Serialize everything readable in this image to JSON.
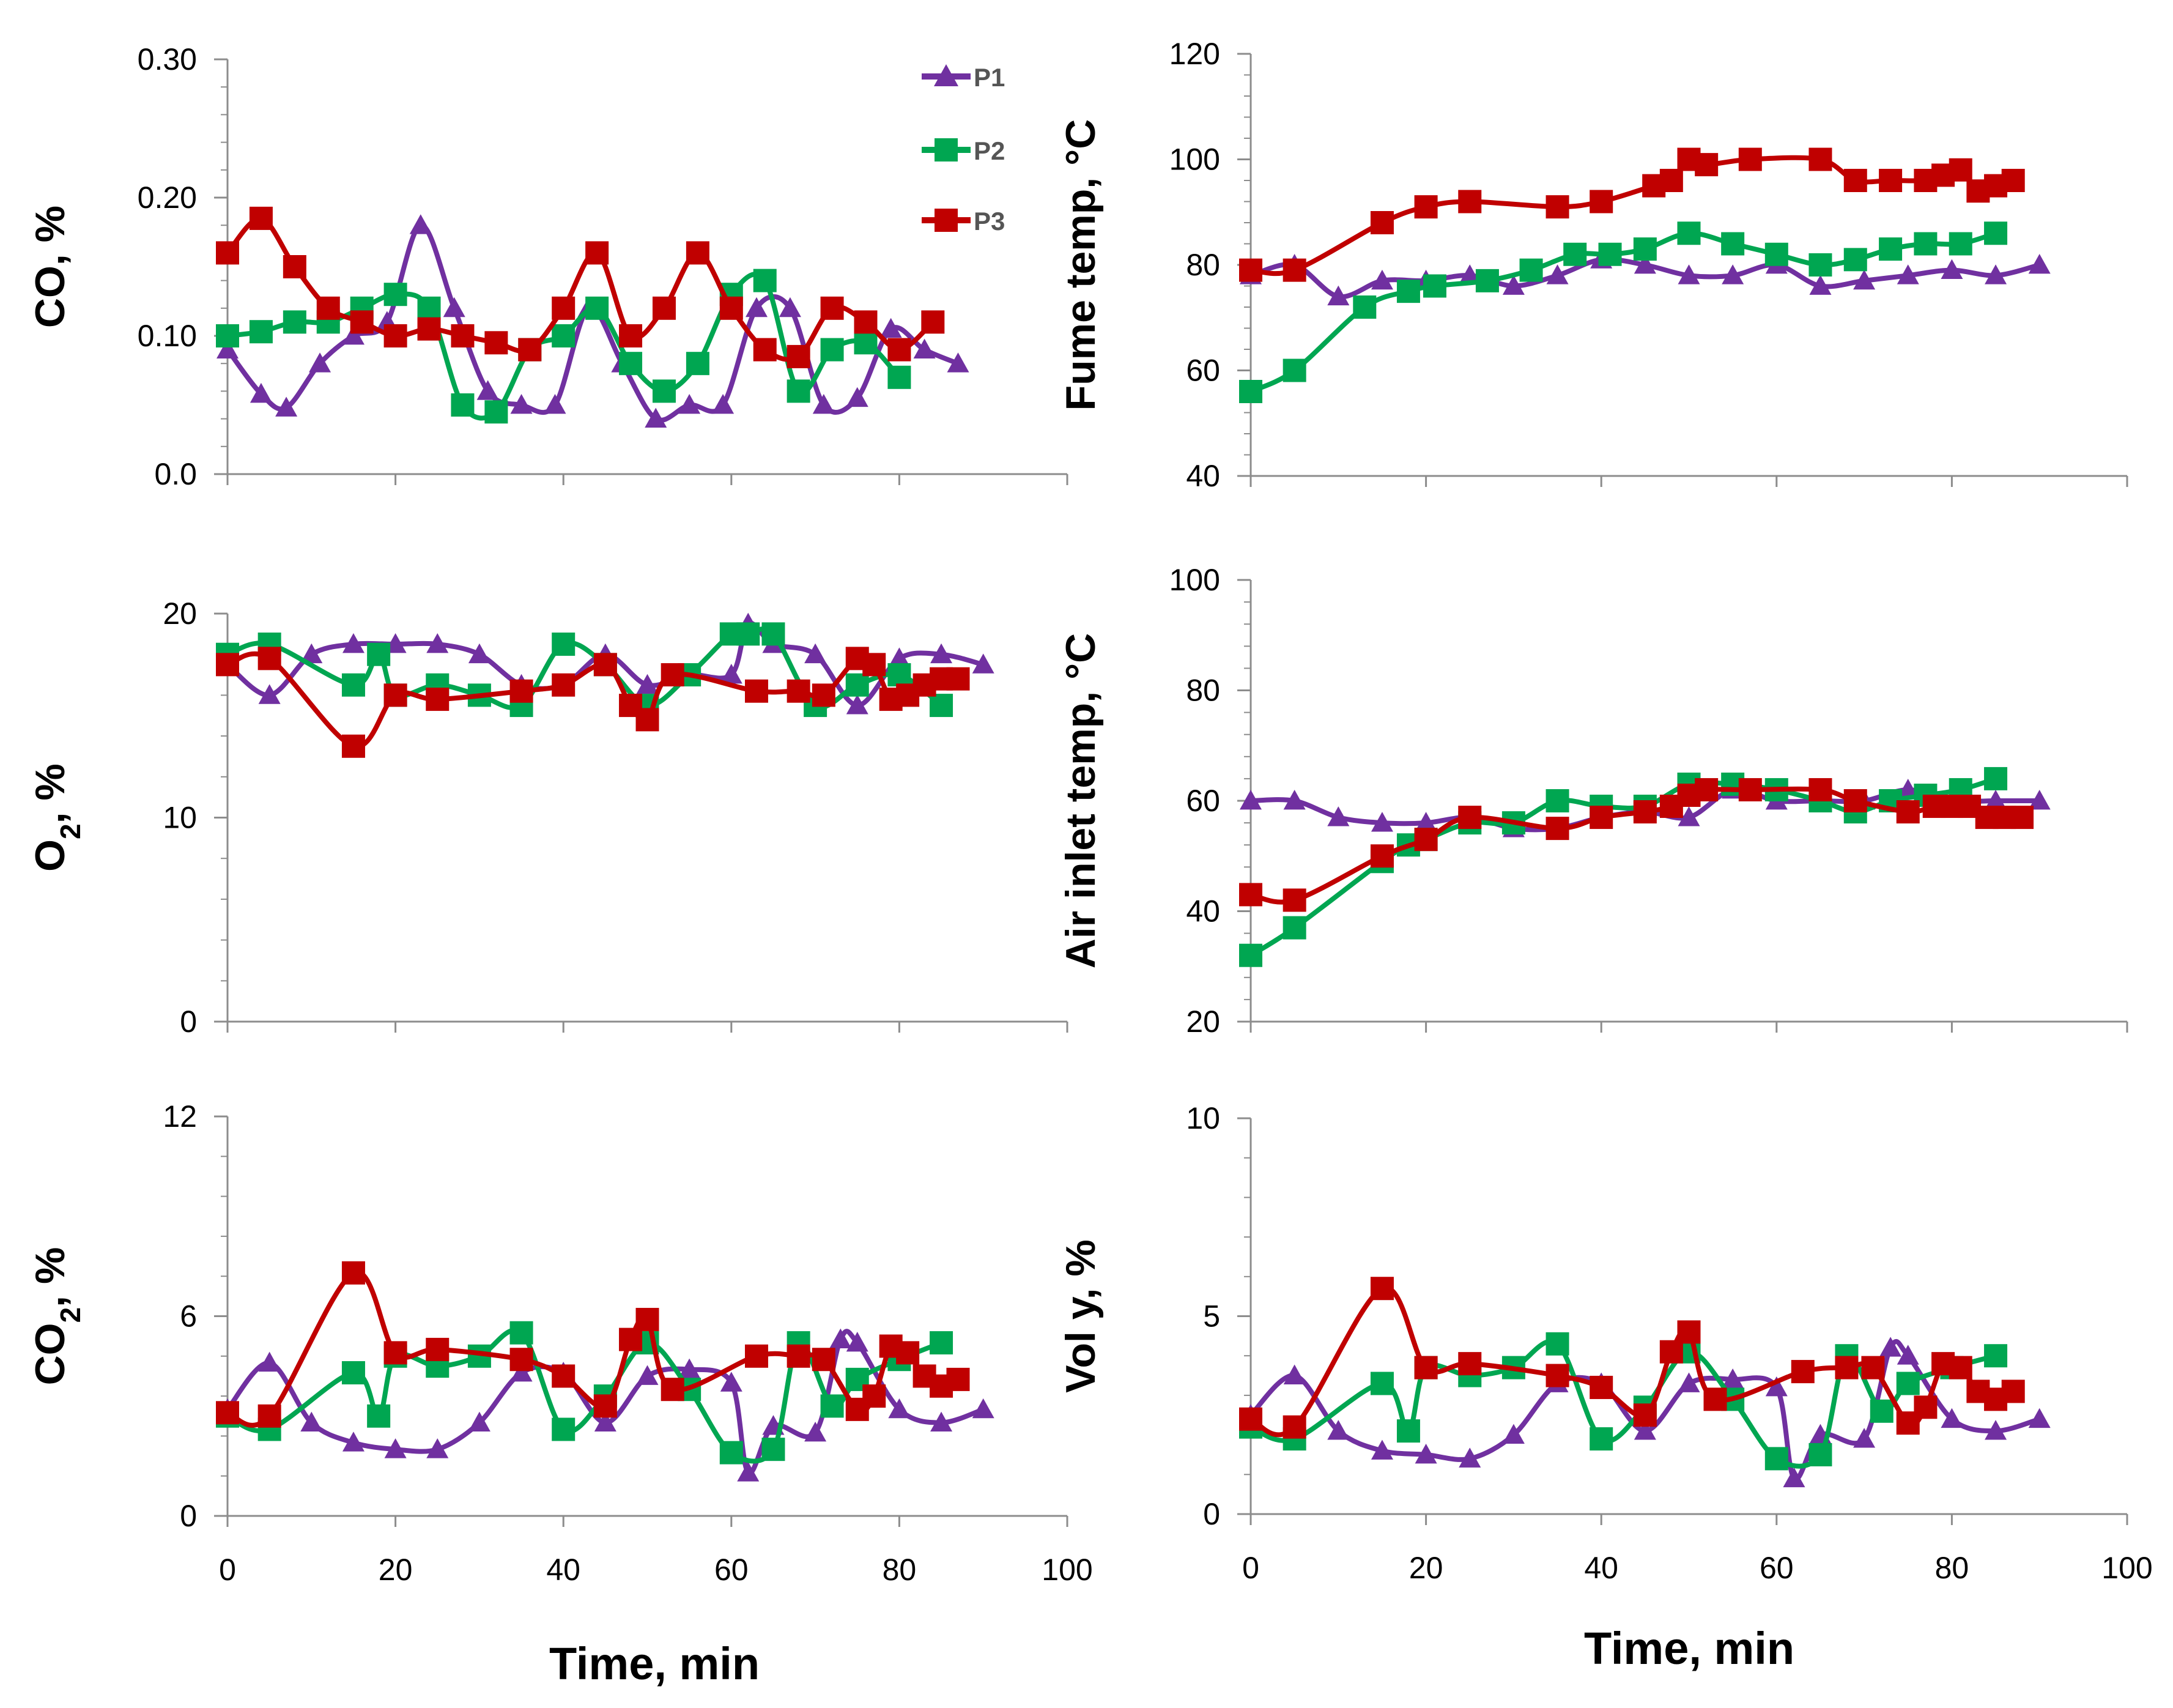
{
  "figure": {
    "xlabel": "Time, min"
  },
  "legend": [
    {
      "name": "P1",
      "color": "#7030a0",
      "marker": "triangle"
    },
    {
      "name": "P2",
      "color": "#00a651",
      "marker": "square"
    },
    {
      "name": "P3",
      "color": "#c00000",
      "marker": "square"
    }
  ],
  "chart_data": [
    {
      "id": "co",
      "type": "line",
      "title": "",
      "ylabel": "CO, %",
      "xlabel": "",
      "xlim": [
        0,
        100
      ],
      "ylim": [
        0,
        0.3
      ],
      "xticks": [
        0,
        20,
        40,
        60,
        80,
        100
      ],
      "xtick_labels": [],
      "yticks": [
        0,
        0.1,
        0.2,
        0.3
      ],
      "ytick_labels": [
        "0.0",
        "0.10",
        "0.20",
        "0.30"
      ],
      "series": [
        {
          "name": "P1",
          "x": [
            0,
            4,
            7,
            11,
            15,
            19,
            23,
            27,
            31,
            35,
            39,
            43,
            47,
            51,
            55,
            59,
            63,
            67,
            71,
            75,
            79,
            83,
            87
          ],
          "y": [
            0.09,
            0.058,
            0.048,
            0.08,
            0.1,
            0.11,
            0.18,
            0.12,
            0.06,
            0.05,
            0.05,
            0.12,
            0.08,
            0.04,
            0.05,
            0.05,
            0.12,
            0.12,
            0.05,
            0.055,
            0.105,
            0.09,
            0.08
          ]
        },
        {
          "name": "P2",
          "x": [
            0,
            4,
            8,
            12,
            16,
            20,
            24,
            28,
            32,
            36,
            40,
            44,
            48,
            52,
            56,
            60,
            64,
            68,
            72,
            76,
            80
          ],
          "y": [
            0.1,
            0.103,
            0.11,
            0.11,
            0.12,
            0.13,
            0.12,
            0.05,
            0.045,
            0.09,
            0.1,
            0.12,
            0.08,
            0.06,
            0.08,
            0.13,
            0.14,
            0.06,
            0.09,
            0.095,
            0.07
          ]
        },
        {
          "name": "P3",
          "x": [
            0,
            4,
            8,
            12,
            16,
            20,
            24,
            28,
            32,
            36,
            40,
            44,
            48,
            52,
            56,
            60,
            64,
            68,
            72,
            76,
            80,
            84
          ],
          "y": [
            0.16,
            0.185,
            0.15,
            0.12,
            0.11,
            0.1,
            0.105,
            0.1,
            0.095,
            0.09,
            0.12,
            0.16,
            0.1,
            0.12,
            0.16,
            0.12,
            0.09,
            0.085,
            0.12,
            0.11,
            0.09,
            0.11
          ]
        }
      ]
    },
    {
      "id": "fume",
      "type": "line",
      "title": "",
      "ylabel": "Fume temp, °C",
      "xlabel": "",
      "xlim": [
        0,
        100
      ],
      "ylim": [
        40,
        120
      ],
      "xticks": [
        0,
        20,
        40,
        60,
        80,
        100
      ],
      "xtick_labels": [],
      "yticks": [
        40,
        60,
        80,
        100,
        120
      ],
      "ytick_labels": [
        "40",
        "60",
        "80",
        "100",
        "120"
      ],
      "series": [
        {
          "name": "P1",
          "x": [
            0,
            5,
            10,
            15,
            20,
            25,
            30,
            35,
            40,
            45,
            50,
            55,
            60,
            65,
            70,
            75,
            80,
            85,
            90
          ],
          "y": [
            78,
            80,
            74,
            77,
            77,
            78,
            76,
            78,
            81,
            80,
            78,
            78,
            80,
            76,
            77,
            78,
            79,
            78,
            80
          ]
        },
        {
          "name": "P2",
          "x": [
            0,
            5,
            13,
            18,
            21,
            27,
            32,
            37,
            41,
            45,
            50,
            55,
            60,
            65,
            69,
            73,
            77,
            81,
            85
          ],
          "y": [
            56,
            60,
            72,
            75,
            76,
            77,
            79,
            82,
            82,
            83,
            86,
            84,
            82,
            80,
            81,
            83,
            84,
            84,
            86
          ]
        },
        {
          "name": "P3",
          "x": [
            0,
            5,
            15,
            20,
            25,
            35,
            40,
            46,
            48,
            50,
            52,
            57,
            65,
            69,
            73,
            77,
            79,
            81,
            83,
            85,
            87
          ],
          "y": [
            79,
            79,
            88,
            91,
            92,
            91,
            92,
            95,
            96,
            100,
            99,
            100,
            100,
            96,
            96,
            96,
            97,
            98,
            94,
            95,
            96
          ]
        }
      ]
    },
    {
      "id": "o2",
      "type": "line",
      "title": "",
      "ylabel": "O2, %",
      "xlabel": "",
      "xlim": [
        0,
        100
      ],
      "ylim": [
        0,
        20
      ],
      "xticks": [
        0,
        20,
        40,
        60,
        80,
        100
      ],
      "xtick_labels": [],
      "yticks": [
        0,
        10,
        20
      ],
      "ytick_labels": [
        "0",
        "10",
        "20"
      ],
      "series": [
        {
          "name": "P1",
          "x": [
            0,
            5,
            10,
            15,
            20,
            25,
            30,
            35,
            40,
            45,
            50,
            55,
            60,
            62,
            65,
            70,
            75,
            80,
            85,
            90
          ],
          "y": [
            17.5,
            16,
            18,
            18.5,
            18.5,
            18.5,
            18,
            16.5,
            16.5,
            18,
            16.5,
            17,
            17,
            19.5,
            18.5,
            18,
            15.5,
            17.8,
            18,
            17.5
          ]
        },
        {
          "name": "P2",
          "x": [
            0,
            5,
            15,
            18,
            20,
            25,
            30,
            35,
            40,
            45,
            50,
            55,
            60,
            62,
            65,
            70,
            75,
            80,
            85
          ],
          "y": [
            18,
            18.5,
            16.5,
            18,
            16,
            16.5,
            16,
            15.5,
            18.5,
            17.5,
            15.5,
            17,
            19,
            19,
            19,
            15.5,
            16.5,
            17,
            15.5
          ]
        },
        {
          "name": "P3",
          "x": [
            0,
            5,
            15,
            20,
            25,
            35,
            40,
            45,
            48,
            50,
            53,
            63,
            68,
            71,
            75,
            77,
            79,
            81,
            83,
            85,
            87
          ],
          "y": [
            17.5,
            17.8,
            13.5,
            16,
            15.8,
            16.2,
            16.5,
            17.5,
            15.5,
            14.8,
            17,
            16.2,
            16.2,
            16,
            17.8,
            17.5,
            15.8,
            16,
            16.5,
            16.8,
            16.8
          ]
        }
      ]
    },
    {
      "id": "air",
      "type": "line",
      "title": "",
      "ylabel": "Air inlet temp, °C",
      "xlabel": "",
      "xlim": [
        0,
        100
      ],
      "ylim": [
        20,
        100
      ],
      "xticks": [
        0,
        20,
        40,
        60,
        80,
        100
      ],
      "xtick_labels": [],
      "yticks": [
        20,
        40,
        60,
        80,
        100
      ],
      "ytick_labels": [
        "20",
        "40",
        "60",
        "80",
        "100"
      ],
      "series": [
        {
          "name": "P1",
          "x": [
            0,
            5,
            10,
            15,
            20,
            25,
            30,
            35,
            40,
            45,
            50,
            55,
            60,
            65,
            70,
            75,
            80,
            85,
            90
          ],
          "y": [
            60,
            60,
            57,
            56,
            56,
            57,
            55,
            55,
            57,
            58,
            57,
            62,
            60,
            60,
            60,
            62,
            60,
            60,
            60
          ]
        },
        {
          "name": "P2",
          "x": [
            0,
            5,
            15,
            18,
            20,
            25,
            30,
            35,
            40,
            45,
            50,
            55,
            60,
            65,
            69,
            73,
            77,
            81,
            85
          ],
          "y": [
            32,
            37,
            49,
            52,
            53,
            56,
            56,
            60,
            59,
            59,
            63,
            63,
            62,
            60,
            58,
            60,
            61,
            62,
            64
          ]
        },
        {
          "name": "P3",
          "x": [
            0,
            5,
            15,
            20,
            25,
            35,
            40,
            45,
            48,
            50,
            52,
            57,
            65,
            69,
            75,
            78,
            80,
            82,
            84,
            86,
            88
          ],
          "y": [
            43,
            42,
            50,
            53,
            57,
            55,
            57,
            58,
            59,
            61,
            62,
            62,
            62,
            60,
            58,
            59,
            59,
            59,
            57,
            57,
            57
          ]
        }
      ]
    },
    {
      "id": "co2",
      "type": "line",
      "title": "",
      "ylabel": "CO2, %",
      "xlabel": "",
      "xlim": [
        0,
        100
      ],
      "ylim": [
        0,
        12
      ],
      "xticks": [
        0,
        20,
        40,
        60,
        80,
        100
      ],
      "xtick_labels": [
        "0",
        "20",
        "40",
        "60",
        "80",
        "100"
      ],
      "yticks": [
        0,
        6,
        12
      ],
      "ytick_labels": [
        "0",
        "6",
        "12"
      ],
      "series": [
        {
          "name": "P1",
          "x": [
            0,
            5,
            10,
            15,
            20,
            25,
            30,
            35,
            40,
            45,
            50,
            55,
            60,
            62,
            65,
            70,
            73,
            75,
            80,
            85,
            90
          ],
          "y": [
            3.2,
            4.6,
            2.8,
            2.2,
            2.0,
            2.0,
            2.8,
            4.3,
            4.3,
            2.8,
            4.2,
            4.4,
            4.0,
            1.3,
            2.7,
            2.5,
            5.3,
            5.2,
            3.2,
            2.8,
            3.2
          ]
        },
        {
          "name": "P2",
          "x": [
            0,
            5,
            15,
            18,
            20,
            25,
            30,
            35,
            40,
            45,
            50,
            55,
            60,
            65,
            68,
            72,
            75,
            80,
            85
          ],
          "y": [
            3.0,
            2.6,
            4.3,
            3.0,
            4.8,
            4.5,
            4.8,
            5.5,
            2.6,
            3.6,
            5.2,
            3.8,
            1.9,
            2.0,
            5.2,
            3.3,
            4.1,
            4.7,
            5.2
          ]
        },
        {
          "name": "P3",
          "x": [
            0,
            5,
            15,
            20,
            25,
            35,
            40,
            45,
            48,
            50,
            53,
            63,
            68,
            71,
            75,
            77,
            79,
            81,
            83,
            85,
            87
          ],
          "y": [
            3.1,
            3.0,
            7.3,
            4.9,
            5.0,
            4.7,
            4.2,
            3.3,
            5.3,
            5.9,
            3.8,
            4.8,
            4.8,
            4.7,
            3.2,
            3.6,
            5.1,
            4.9,
            4.2,
            3.9,
            4.1
          ]
        }
      ]
    },
    {
      "id": "voly",
      "type": "line",
      "title": "",
      "ylabel": "Vol y, %",
      "xlabel": "",
      "xlim": [
        0,
        100
      ],
      "ylim": [
        0,
        10
      ],
      "xticks": [
        0,
        20,
        40,
        60,
        80,
        100
      ],
      "xtick_labels": [
        "0",
        "20",
        "40",
        "60",
        "80",
        "100"
      ],
      "yticks": [
        0,
        5,
        10
      ],
      "ytick_labels": [
        "0",
        "5",
        "10"
      ],
      "series": [
        {
          "name": "P1",
          "x": [
            0,
            5,
            10,
            15,
            20,
            25,
            30,
            35,
            40,
            45,
            50,
            55,
            60,
            62,
            65,
            70,
            73,
            75,
            80,
            85,
            90
          ],
          "y": [
            2.5,
            3.5,
            2.1,
            1.6,
            1.5,
            1.4,
            2.0,
            3.3,
            3.3,
            2.1,
            3.3,
            3.4,
            3.2,
            0.9,
            2.0,
            1.9,
            4.2,
            4.0,
            2.4,
            2.1,
            2.4
          ]
        },
        {
          "name": "P2",
          "x": [
            0,
            5,
            15,
            18,
            20,
            25,
            30,
            35,
            40,
            45,
            50,
            55,
            60,
            65,
            68,
            72,
            75,
            80,
            85
          ],
          "y": [
            2.2,
            1.9,
            3.3,
            2.1,
            3.7,
            3.5,
            3.7,
            4.3,
            1.9,
            2.7,
            4.1,
            2.9,
            1.4,
            1.5,
            4.0,
            2.6,
            3.3,
            3.7,
            4.0
          ]
        },
        {
          "name": "P3",
          "x": [
            0,
            5,
            15,
            20,
            25,
            35,
            40,
            45,
            48,
            50,
            53,
            63,
            68,
            71,
            75,
            77,
            79,
            81,
            83,
            85,
            87
          ],
          "y": [
            2.4,
            2.2,
            5.7,
            3.7,
            3.8,
            3.5,
            3.2,
            2.5,
            4.1,
            4.6,
            2.9,
            3.6,
            3.7,
            3.7,
            2.3,
            2.7,
            3.8,
            3.7,
            3.1,
            2.9,
            3.1
          ]
        }
      ]
    }
  ]
}
